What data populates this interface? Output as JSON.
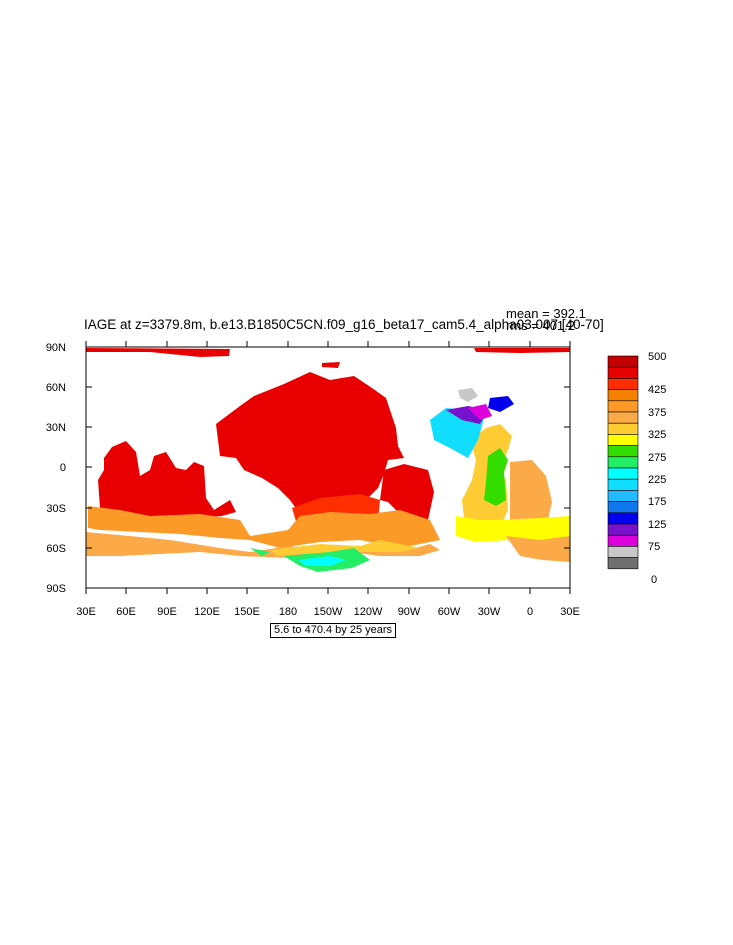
{
  "title": "IAGE at z=3379.8m, b.e13.B1850C5CN.f09_g16_beta17_cam5.4_alpha03.007 [40-70]",
  "stats": {
    "mean": "mean = 392.1",
    "rms": "rms = 401.2"
  },
  "subtitle": "5.6 to 470.4 by 25 years",
  "lat_labels": [
    "90N",
    "60N",
    "30N",
    "0",
    "30S",
    "60S",
    "90S"
  ],
  "lon_labels": [
    "30E",
    "60E",
    "90E",
    "120E",
    "150E",
    "180",
    "150W",
    "120W",
    "90W",
    "60W",
    "30W",
    "0",
    "30E"
  ],
  "colorbar": {
    "colors": [
      "#c40000",
      "#e80000",
      "#ff2e00",
      "#f48200",
      "#fb9a26",
      "#fcaa48",
      "#ffcc33",
      "#ffff00",
      "#33dd00",
      "#22ee66",
      "#00ffff",
      "#11ddff",
      "#22bbff",
      "#1177ee",
      "#0000ee",
      "#7711cc",
      "#dd00dd",
      "#c8c8c8",
      "#707070"
    ],
    "labels": [
      "500",
      "425",
      "375",
      "325",
      "275",
      "225",
      "175",
      "125",
      "75",
      "0"
    ]
  }
}
